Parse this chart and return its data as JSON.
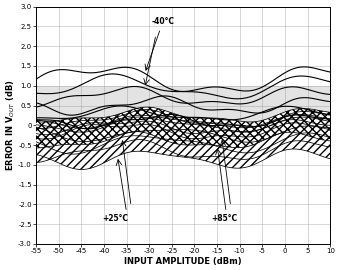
{
  "xlim": [
    -55,
    10
  ],
  "ylim": [
    -3.0,
    3.0
  ],
  "xticks": [
    -55,
    -50,
    -45,
    -40,
    -35,
    -30,
    -25,
    -20,
    -15,
    -10,
    -5,
    0,
    5,
    10
  ],
  "yticks": [
    -3.0,
    -2.5,
    -2.0,
    -1.5,
    -1.0,
    -0.5,
    0,
    0.5,
    1.0,
    1.5,
    2.0,
    2.5,
    3.0
  ],
  "xlabel": "INPUT AMPLITUDE (dBm)",
  "background_color": "#ffffff",
  "shade_color": "#cccccc",
  "shade_ymin": 0.0,
  "shade_ymax": 1.0,
  "line_color": "#000000",
  "grid_color": "#888888"
}
